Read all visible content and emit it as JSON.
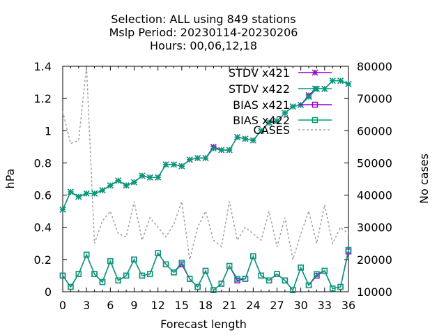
{
  "chart_data": {
    "type": "line",
    "title": [
      "Selection: ALL using   849 stations",
      "Mslp   Period: 20230114-20230206",
      "Hours:  00,06,12,18"
    ],
    "xlabel": "Forecast length",
    "ylabel": "hPa",
    "y2label": "No cases",
    "xlim": [
      0,
      36
    ],
    "ylim": [
      0,
      1.4
    ],
    "y2lim": [
      10000,
      80000
    ],
    "xticks": [
      0,
      3,
      6,
      9,
      12,
      15,
      18,
      21,
      24,
      27,
      30,
      33,
      36
    ],
    "yticks": [
      0,
      0.2,
      0.4,
      0.6,
      0.8,
      1,
      1.2,
      1.4
    ],
    "y2ticks": [
      10000,
      20000,
      30000,
      40000,
      50000,
      60000,
      70000,
      80000
    ],
    "legend_position": "top-right",
    "x": [
      0,
      1,
      2,
      3,
      4,
      5,
      6,
      7,
      8,
      9,
      10,
      11,
      12,
      13,
      14,
      15,
      16,
      17,
      18,
      19,
      20,
      21,
      22,
      23,
      24,
      25,
      26,
      27,
      28,
      29,
      30,
      31,
      32,
      33,
      34,
      35,
      36
    ],
    "series": [
      {
        "name": "STDV x421",
        "axis": "left",
        "color": "#9400d3",
        "marker": "star",
        "values": [
          0.51,
          0.62,
          0.59,
          0.61,
          0.61,
          0.63,
          0.66,
          0.69,
          0.66,
          0.68,
          0.72,
          0.71,
          0.71,
          0.79,
          0.79,
          0.78,
          0.82,
          0.83,
          0.83,
          0.9,
          0.88,
          0.88,
          0.96,
          0.95,
          0.94,
          1.0,
          1.05,
          1.06,
          1.11,
          1.15,
          1.16,
          1.22,
          1.26,
          1.26,
          1.31,
          1.31,
          1.29
        ]
      },
      {
        "name": "STDV x422",
        "axis": "left",
        "color": "#009e73",
        "marker": "star",
        "values": [
          0.51,
          0.62,
          0.59,
          0.61,
          0.61,
          0.63,
          0.66,
          0.69,
          0.66,
          0.68,
          0.72,
          0.71,
          0.71,
          0.79,
          0.79,
          0.78,
          0.82,
          0.83,
          0.83,
          0.89,
          0.88,
          0.88,
          0.96,
          0.95,
          0.94,
          1.0,
          1.05,
          1.06,
          1.11,
          1.15,
          1.16,
          1.21,
          1.26,
          1.26,
          1.31,
          1.31,
          1.29
        ]
      },
      {
        "name": "BIAS x421",
        "axis": "left",
        "color": "#9400d3",
        "marker": "square",
        "values": [
          0.1,
          0.03,
          0.11,
          0.23,
          0.11,
          0.06,
          0.19,
          0.07,
          0.1,
          0.2,
          0.1,
          0.11,
          0.24,
          0.17,
          0.12,
          0.17,
          0.08,
          0.03,
          0.13,
          0.01,
          0.05,
          0.16,
          0.07,
          0.08,
          0.22,
          0.1,
          0.07,
          0.11,
          0.07,
          0.01,
          0.15,
          0.04,
          0.1,
          0.13,
          0.02,
          0.03,
          0.25
        ]
      },
      {
        "name": "BIAS x422",
        "axis": "left",
        "color": "#009e73",
        "marker": "square",
        "values": [
          0.1,
          0.03,
          0.11,
          0.23,
          0.11,
          0.06,
          0.19,
          0.07,
          0.1,
          0.2,
          0.1,
          0.11,
          0.24,
          0.17,
          0.12,
          0.18,
          0.08,
          0.03,
          0.13,
          0.01,
          0.05,
          0.16,
          0.08,
          0.08,
          0.22,
          0.1,
          0.07,
          0.11,
          0.07,
          0.01,
          0.15,
          0.04,
          0.11,
          0.13,
          0.02,
          0.03,
          0.26
        ]
      },
      {
        "name": "CASES",
        "axis": "right",
        "color": "#a0a0a0",
        "marker": "none",
        "dashed": true,
        "values": [
          66000,
          56000,
          57000,
          80000,
          25000,
          32000,
          35000,
          28000,
          27000,
          38000,
          26000,
          33000,
          30000,
          27000,
          31000,
          38000,
          20000,
          30000,
          35000,
          26000,
          24000,
          38000,
          26000,
          30000,
          28000,
          26000,
          35000,
          24000,
          33000,
          20000,
          28000,
          35000,
          25000,
          37000,
          25000,
          30000,
          28000
        ]
      }
    ]
  }
}
